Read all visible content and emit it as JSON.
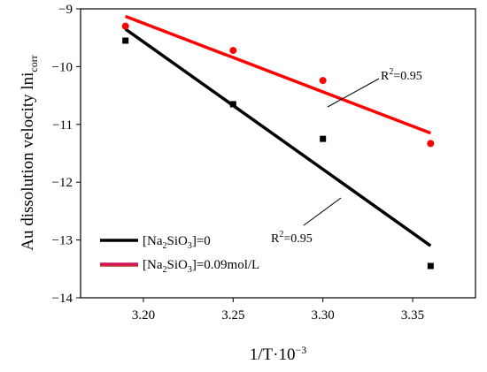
{
  "chart_data": {
    "type": "scatter",
    "xlabel": "1/T·10",
    "xlabel_sup": "−3",
    "ylabel": "Au dissolution velocity lni",
    "ylabel_sub": "corr",
    "xlim": [
      3.165,
      3.385
    ],
    "ylim": [
      -14,
      -9
    ],
    "xticks": [
      3.2,
      3.25,
      3.3,
      3.35
    ],
    "xtick_labels": [
      "3.20",
      "3.25",
      "3.30",
      "3.35"
    ],
    "yticks": [
      -14,
      -13,
      -12,
      -11,
      -10,
      -9
    ],
    "ytick_labels": [
      "−14",
      "−13",
      "−12",
      "−11",
      "−10",
      "−9"
    ],
    "grid": false,
    "legend_position": "bottom-left",
    "series": [
      {
        "name": "[Na2SiO3]=0",
        "name_parts": {
          "pre": "[Na",
          "sub1": "2",
          "mid": "SiO",
          "sub2": "3",
          "post": "]=0"
        },
        "color": "#000000",
        "marker": "square",
        "points": [
          [
            3.19,
            -9.55
          ],
          [
            3.25,
            -10.65
          ],
          [
            3.3,
            -11.25
          ],
          [
            3.36,
            -13.45
          ]
        ],
        "fit": [
          [
            3.19,
            -9.35
          ],
          [
            3.36,
            -13.1
          ]
        ],
        "r2_label": {
          "base": "R",
          "sup": "2",
          "rest": "=0.95"
        }
      },
      {
        "name": "[Na2SiO3]=0.09mol/L",
        "name_parts": {
          "pre": "[Na",
          "sub1": "2",
          "mid": "SiO",
          "sub2": "3",
          "post": "]=0.09mol/L"
        },
        "color": "#ff0000",
        "marker": "circle",
        "points": [
          [
            3.19,
            -9.3
          ],
          [
            3.25,
            -9.72
          ],
          [
            3.3,
            -10.24
          ],
          [
            3.36,
            -11.33
          ]
        ],
        "fit": [
          [
            3.19,
            -9.13
          ],
          [
            3.36,
            -11.15
          ]
        ],
        "r2_label": {
          "base": "R",
          "sup": "2",
          "rest": "=0.95"
        }
      }
    ]
  }
}
